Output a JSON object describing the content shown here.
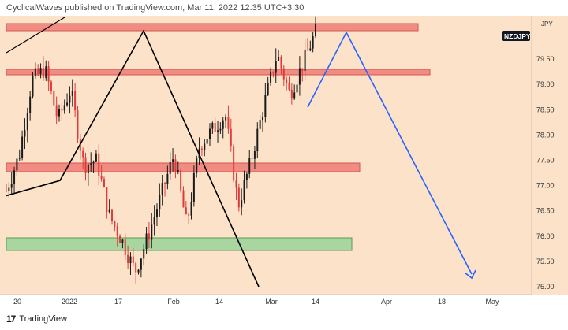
{
  "header": {
    "publisher_text": "CyclicalWaves published on TradingView.com, Mar 11, 2022 12:35 UTC+3:30"
  },
  "footer": {
    "logo_glyph": "17",
    "brand": "TradingView"
  },
  "colors": {
    "plot_bg": "#fbe2c8",
    "up_candle": "#1a1a1a",
    "down_candle": "#e03a3a",
    "resistance_zone": "#f28b82",
    "support_zone": "#a8d5a0",
    "projection": "#2962ff",
    "wave_line": "#000000",
    "symbol_badge": "#131722"
  },
  "chart_data": {
    "type": "candlestick",
    "symbol": "NZDJPY",
    "currency": "JPY",
    "y_ticks": [
      "80.00",
      "79.50",
      "79.00",
      "78.50",
      "78.00",
      "77.50",
      "77.00",
      "76.50",
      "76.00",
      "75.50",
      "75.00"
    ],
    "x_ticks": [
      "20",
      "2022",
      "17",
      "Feb",
      "14",
      "Mar",
      "14",
      "Apr",
      "18",
      "May"
    ],
    "ylim": [
      75.0,
      80.1
    ],
    "grid": false,
    "last_price": 79.95,
    "zones": [
      {
        "kind": "resistance",
        "low": 80.0,
        "high": 80.12,
        "start": "Dec 2021",
        "end": "Apr 2022"
      },
      {
        "kind": "resistance",
        "low": 79.22,
        "high": 79.3,
        "start": "Dec 2021",
        "end": "Apr 2022"
      },
      {
        "kind": "resistance",
        "low": 77.3,
        "high": 77.45,
        "start": "Dec 2021",
        "end": "Mar 2022"
      },
      {
        "kind": "support",
        "low": 75.8,
        "high": 76.02,
        "start": "Dec 2021",
        "end": "Mar 2022"
      }
    ],
    "wave_path": [
      {
        "date": "Dec 2021",
        "price": 76.8
      },
      {
        "date": "Jan 4 2022",
        "price": 77.1
      },
      {
        "date": "Jan 25 2022",
        "price": 80.06
      },
      {
        "date": "Mar 2 2022",
        "price": 75.0
      }
    ],
    "projection_path": [
      {
        "date": "Mar 11 2022",
        "price": 78.55
      },
      {
        "date": "Mar 20 2022",
        "price": 80.03
      },
      {
        "date": "May 1 2022",
        "price": 75.25
      }
    ],
    "candles_swings": [
      76.9,
      77.6,
      79.1,
      79.3,
      78.3,
      78.9,
      77.4,
      77.5,
      76.4,
      75.9,
      75.3,
      76.0,
      76.8,
      77.6,
      76.2,
      77.8,
      78.1,
      78.4,
      76.6,
      77.5,
      78.6,
      79.6,
      78.8,
      79.4,
      80.04
    ]
  }
}
